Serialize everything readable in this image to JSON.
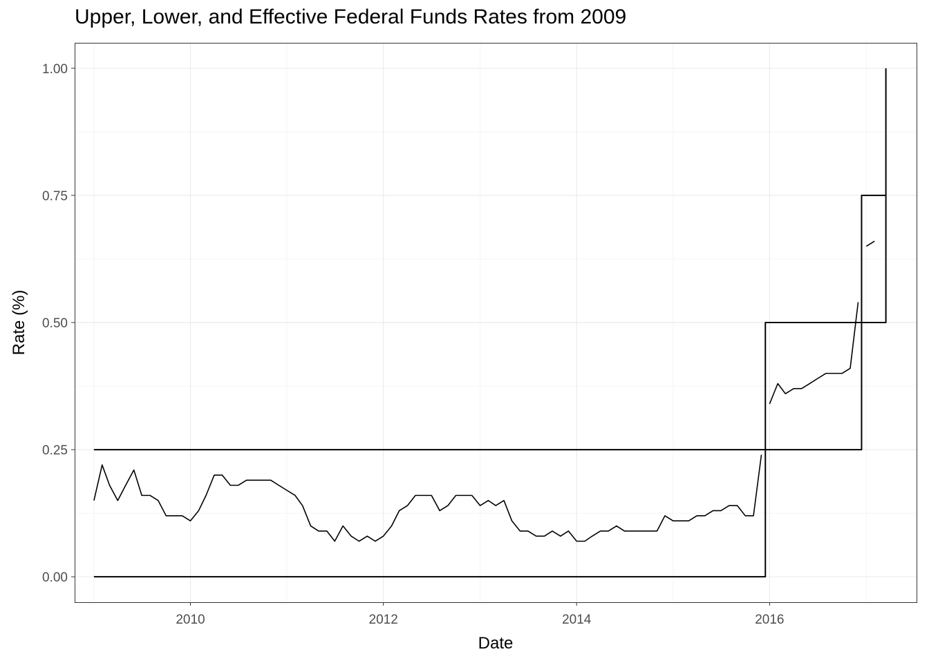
{
  "chart_data": {
    "type": "line",
    "title": "Upper, Lower, and Effective Federal Funds Rates from 2009",
    "xlabel": "Date",
    "ylabel": "Rate (%)",
    "xlim": [
      "2008-10-20",
      "2017-07-10"
    ],
    "ylim": [
      -0.05,
      1.05
    ],
    "x_ticks": [
      "2010",
      "2012",
      "2014",
      "2016"
    ],
    "y_ticks": [
      "0.00",
      "0.25",
      "0.50",
      "0.75",
      "1.00"
    ],
    "grid": true,
    "legend": "none",
    "series": [
      {
        "x": [
          "2009-01-01",
          "2015-12-16",
          "2016-12-14",
          "2017-03-16"
        ],
        "values": [
          0.25,
          0.5,
          0.75,
          1.0
        ]
      },
      {
        "x": [
          "2009-01-01",
          "2015-12-16",
          "2016-12-14",
          "2017-03-16"
        ],
        "values": [
          0.0,
          0.25,
          0.5,
          0.75
        ]
      },
      {
        "x": [
          "2009-01-01",
          "2009-02-01",
          "2009-03-01",
          "2009-04-01",
          "2009-05-01",
          "2009-06-01",
          "2009-07-01",
          "2009-08-01",
          "2009-09-01",
          "2009-10-01",
          "2009-11-01",
          "2009-12-01",
          "2010-01-01",
          "2010-02-01",
          "2010-03-01",
          "2010-04-01",
          "2010-05-01",
          "2010-06-01",
          "2010-07-01",
          "2010-08-01",
          "2010-09-01",
          "2010-10-01",
          "2010-11-01",
          "2010-12-01",
          "2011-01-01",
          "2011-02-01",
          "2011-03-01",
          "2011-04-01",
          "2011-05-01",
          "2011-06-01",
          "2011-07-01",
          "2011-08-01",
          "2011-09-01",
          "2011-10-01",
          "2011-11-01",
          "2011-12-01",
          "2012-01-01",
          "2012-02-01",
          "2012-03-01",
          "2012-04-01",
          "2012-05-01",
          "2012-06-01",
          "2012-07-01",
          "2012-08-01",
          "2012-09-01",
          "2012-10-01",
          "2012-11-01",
          "2012-12-01",
          "2013-01-01",
          "2013-02-01",
          "2013-03-01",
          "2013-04-01",
          "2013-05-01",
          "2013-06-01",
          "2013-07-01",
          "2013-08-01",
          "2013-09-01",
          "2013-10-01",
          "2013-11-01",
          "2013-12-01",
          "2014-01-01",
          "2014-02-01",
          "2014-03-01",
          "2014-04-01",
          "2014-05-01",
          "2014-06-01",
          "2014-07-01",
          "2014-08-01",
          "2014-09-01",
          "2014-10-01",
          "2014-11-01",
          "2014-12-01",
          "2015-01-01",
          "2015-02-01",
          "2015-03-01",
          "2015-04-01",
          "2015-05-01",
          "2015-06-01",
          "2015-07-01",
          "2015-08-01",
          "2015-09-01",
          "2015-10-01",
          "2015-11-01",
          "2015-12-01",
          null,
          "2016-01-01",
          "2016-02-01",
          "2016-03-01",
          "2016-04-01",
          "2016-05-01",
          "2016-06-01",
          "2016-07-01",
          "2016-08-01",
          "2016-09-01",
          "2016-10-01",
          "2016-11-01",
          "2016-12-01",
          null,
          "2017-01-01",
          "2017-02-01"
        ],
        "values": [
          0.15,
          0.22,
          0.18,
          0.15,
          0.18,
          0.21,
          0.16,
          0.16,
          0.15,
          0.12,
          0.12,
          0.12,
          0.11,
          0.13,
          0.16,
          0.2,
          0.2,
          0.18,
          0.18,
          0.19,
          0.19,
          0.19,
          0.19,
          0.18,
          0.17,
          0.16,
          0.14,
          0.1,
          0.09,
          0.09,
          0.07,
          0.1,
          0.08,
          0.07,
          0.08,
          0.07,
          0.08,
          0.1,
          0.13,
          0.14,
          0.16,
          0.16,
          0.16,
          0.13,
          0.14,
          0.16,
          0.16,
          0.16,
          0.14,
          0.15,
          0.14,
          0.15,
          0.11,
          0.09,
          0.09,
          0.08,
          0.08,
          0.09,
          0.08,
          0.09,
          0.07,
          0.07,
          0.08,
          0.09,
          0.09,
          0.1,
          0.09,
          0.09,
          0.09,
          0.09,
          0.09,
          0.12,
          0.11,
          0.11,
          0.11,
          0.12,
          0.12,
          0.13,
          0.13,
          0.14,
          0.14,
          0.12,
          0.12,
          0.24,
          null,
          0.34,
          0.38,
          0.36,
          0.37,
          0.37,
          0.38,
          0.39,
          0.4,
          0.4,
          0.4,
          0.41,
          0.54,
          null,
          0.65,
          0.66
        ]
      }
    ]
  },
  "colors": {
    "line": "#000000",
    "grid_major": "#ebebeb",
    "grid_minor": "#f4f4f4",
    "panel_border": "#333333",
    "tick_text": "#4d4d4d"
  }
}
